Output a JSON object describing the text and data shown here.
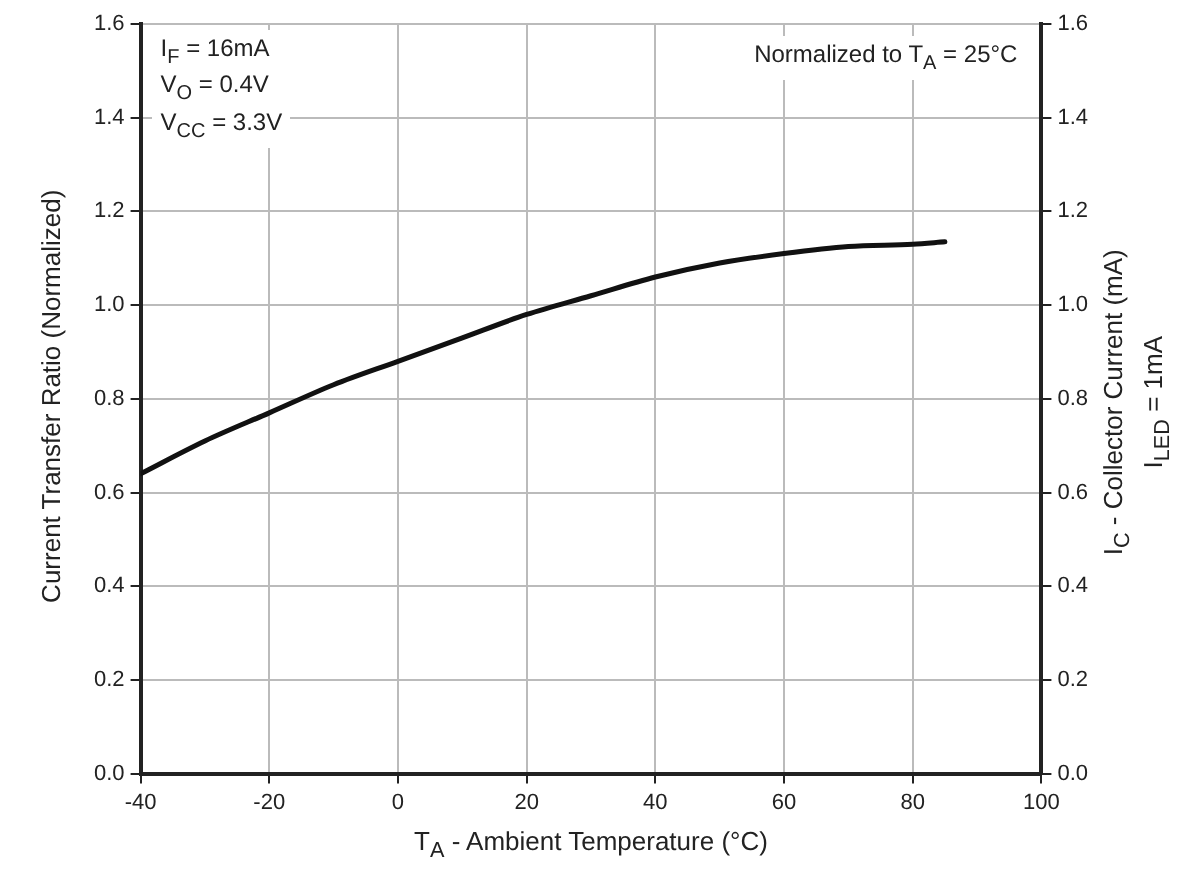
{
  "chart_data": {
    "type": "line",
    "xlabel": "T$_{A}$ - Ambient Temperature (°C)",
    "ylabel": "Current Transfer Ratio (Normalized)",
    "y2label": "I$_{C}$ - Collector Current (mA)\nI$_{LED}$ = 1mA",
    "annotations": [
      "I$_{F}$ = 16mA\nV$_{O}$ = 0.4V\nV$_{CC}$ = 3.3V",
      "Normalized to T$_{A}$ = 25°C"
    ],
    "x": [
      -40,
      -30,
      -20,
      -10,
      0,
      10,
      20,
      30,
      40,
      50,
      60,
      70,
      80,
      85
    ],
    "series": [
      {
        "color": "#111111",
        "values": [
          0.64,
          0.71,
          0.77,
          0.83,
          0.88,
          0.93,
          0.98,
          1.02,
          1.06,
          1.09,
          1.11,
          1.125,
          1.13,
          1.135
        ]
      }
    ],
    "xlim": [
      -40,
      100
    ],
    "xticks": [
      -40,
      -20,
      0,
      20,
      40,
      60,
      80,
      100
    ],
    "ylim": [
      0,
      1.6
    ],
    "yticks": [
      {
        "value": 0,
        "label": "0.0"
      },
      {
        "value": 0.2,
        "label": "0.2"
      },
      {
        "value": 0.4,
        "label": "0.4"
      },
      {
        "value": 0.6,
        "label": "0.6"
      },
      {
        "value": 0.8,
        "label": "0.8"
      },
      {
        "value": 1,
        "label": "1.0"
      },
      {
        "value": 1.2,
        "label": "1.2"
      },
      {
        "value": 1.4,
        "label": "1.4"
      },
      {
        "value": 1.6,
        "label": "1.6"
      }
    ],
    "y2lim": [
      0,
      1.6
    ],
    "y2ticks": [
      {
        "value": 0,
        "label": "0.0"
      },
      {
        "value": 0.2,
        "label": "0.2"
      },
      {
        "value": 0.4,
        "label": "0.4"
      },
      {
        "value": 0.6,
        "label": "0.6"
      },
      {
        "value": 0.8,
        "label": "0.8"
      },
      {
        "value": 1,
        "label": "1.0"
      },
      {
        "value": 1.2,
        "label": "1.2"
      },
      {
        "value": 1.4,
        "label": "1.4"
      },
      {
        "value": 1.6,
        "label": "1.6"
      }
    ],
    "grid": true,
    "legend": false,
    "marker": "none",
    "line_style": "solid"
  }
}
